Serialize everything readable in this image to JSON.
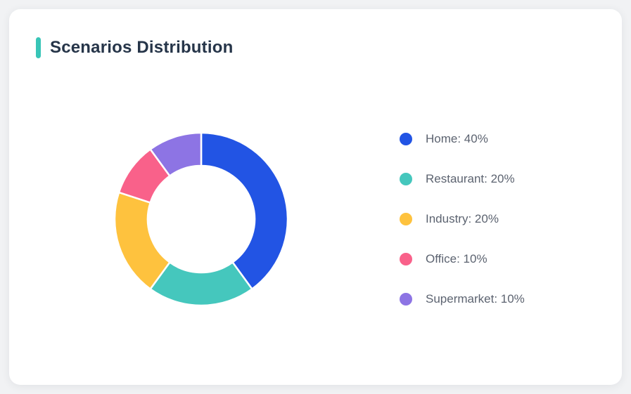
{
  "page": {
    "background_color": "#f1f2f4",
    "card_background": "#ffffff"
  },
  "card": {
    "title": "Scenarios Distribution",
    "accent_color": "#38C5B7",
    "title_color": "#263549"
  },
  "chart_data": {
    "type": "pie",
    "subtype": "donut",
    "title": "Scenarios Distribution",
    "categories": [
      "Home",
      "Restaurant",
      "Industry",
      "Office",
      "Supermarket"
    ],
    "values": [
      40,
      20,
      20,
      10,
      10
    ],
    "unit": "%",
    "colors": [
      "#2254E4",
      "#45C7BD",
      "#FEC23E",
      "#F9618A",
      "#8D74E4"
    ],
    "start_angle_deg": 0,
    "direction": "clockwise",
    "inner_radius_ratio": 0.62,
    "slice_gap_color": "#ffffff",
    "legend_position": "right",
    "legend": [
      {
        "label": "Home",
        "value": 40,
        "display": "Home: 40%",
        "color": "#2254E4"
      },
      {
        "label": "Restaurant",
        "value": 20,
        "display": "Restaurant: 20%",
        "color": "#45C7BD"
      },
      {
        "label": "Industry",
        "value": 20,
        "display": "Industry: 20%",
        "color": "#FEC23E"
      },
      {
        "label": "Office",
        "value": 10,
        "display": "Office: 10%",
        "color": "#F9618A"
      },
      {
        "label": "Supermarket",
        "value": 10,
        "display": "Supermarket: 10%",
        "color": "#8D74E4"
      }
    ]
  }
}
